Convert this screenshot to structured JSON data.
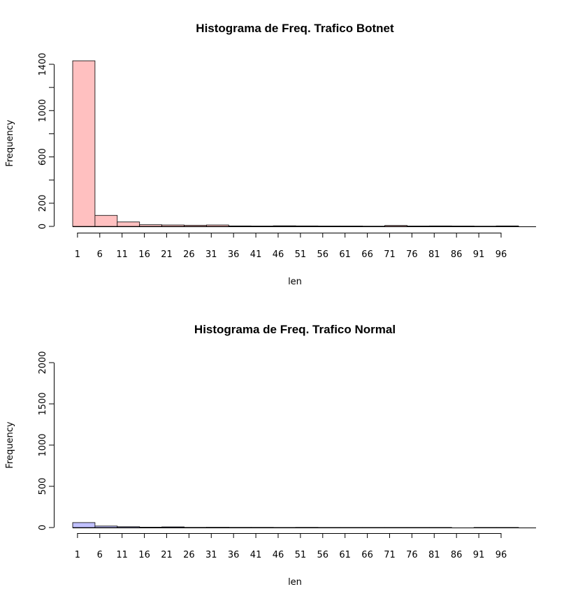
{
  "chart_data": [
    {
      "type": "bar",
      "title": "Histograma de Freq. Trafico Botnet",
      "xlabel": "len",
      "ylabel": "Frequency",
      "ylim": [
        0,
        1400
      ],
      "yticks": [
        "0",
        "200",
        "600",
        "1000",
        "1400"
      ],
      "ytick_values": [
        0,
        200,
        600,
        1000,
        1400
      ],
      "xticks": [
        "1",
        "6",
        "11",
        "16",
        "21",
        "26",
        "31",
        "36",
        "41",
        "46",
        "51",
        "56",
        "61",
        "66",
        "71",
        "76",
        "81",
        "86",
        "91",
        "96"
      ],
      "bin_start": 1,
      "bin_width": 5,
      "values": [
        1430,
        95,
        38,
        14,
        12,
        10,
        12,
        4,
        3,
        5,
        4,
        3,
        3,
        2,
        8,
        3,
        4,
        3,
        2,
        4
      ],
      "fill": "#ffc0c0",
      "stroke": "#000000"
    },
    {
      "type": "bar",
      "title": "Histograma de Freq. Trafico Normal",
      "xlabel": "len",
      "ylabel": "Frequency",
      "ylim": [
        0,
        2000
      ],
      "yticks": [
        "0",
        "500",
        "1000",
        "1500",
        "2000"
      ],
      "ytick_values": [
        0,
        500,
        1000,
        1500,
        2000
      ],
      "xticks": [
        "1",
        "6",
        "11",
        "16",
        "21",
        "26",
        "31",
        "36",
        "41",
        "46",
        "51",
        "56",
        "61",
        "66",
        "71",
        "76",
        "81",
        "86",
        "91",
        "96"
      ],
      "bin_start": 1,
      "bin_width": 5,
      "values": [
        60,
        18,
        10,
        4,
        8,
        2,
        3,
        2,
        2,
        1,
        2,
        1,
        1,
        1,
        1,
        1,
        1,
        0,
        1,
        1
      ],
      "fill": "#c0c0ff",
      "stroke": "#000000"
    }
  ]
}
